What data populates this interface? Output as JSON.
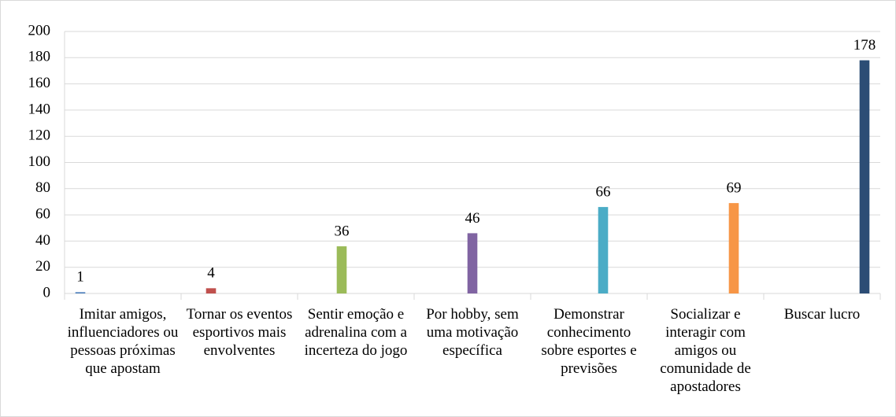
{
  "chart_data": {
    "type": "bar",
    "categories": [
      "Imitar amigos, influenciadores ou pessoas próximas que apostam",
      "Tornar os eventos esportivos mais envolventes",
      "Sentir emoção e adrenalina com a incerteza do jogo",
      "Por hobby, sem uma motivação específica",
      "Demonstrar conhecimento sobre esportes e previsões",
      "Socializar e interagir com amigos ou comunidade de apostadores",
      "Buscar lucro"
    ],
    "values": [
      1,
      4,
      36,
      46,
      66,
      69,
      178
    ],
    "colors": [
      "#4f81bd",
      "#c0504d",
      "#9bbb59",
      "#8064a2",
      "#4bacc6",
      "#f79646",
      "#2c4d75"
    ],
    "ylim": [
      0,
      200
    ],
    "yticks": [
      0,
      20,
      40,
      60,
      80,
      100,
      120,
      140,
      160,
      180,
      200
    ],
    "grid": true
  }
}
